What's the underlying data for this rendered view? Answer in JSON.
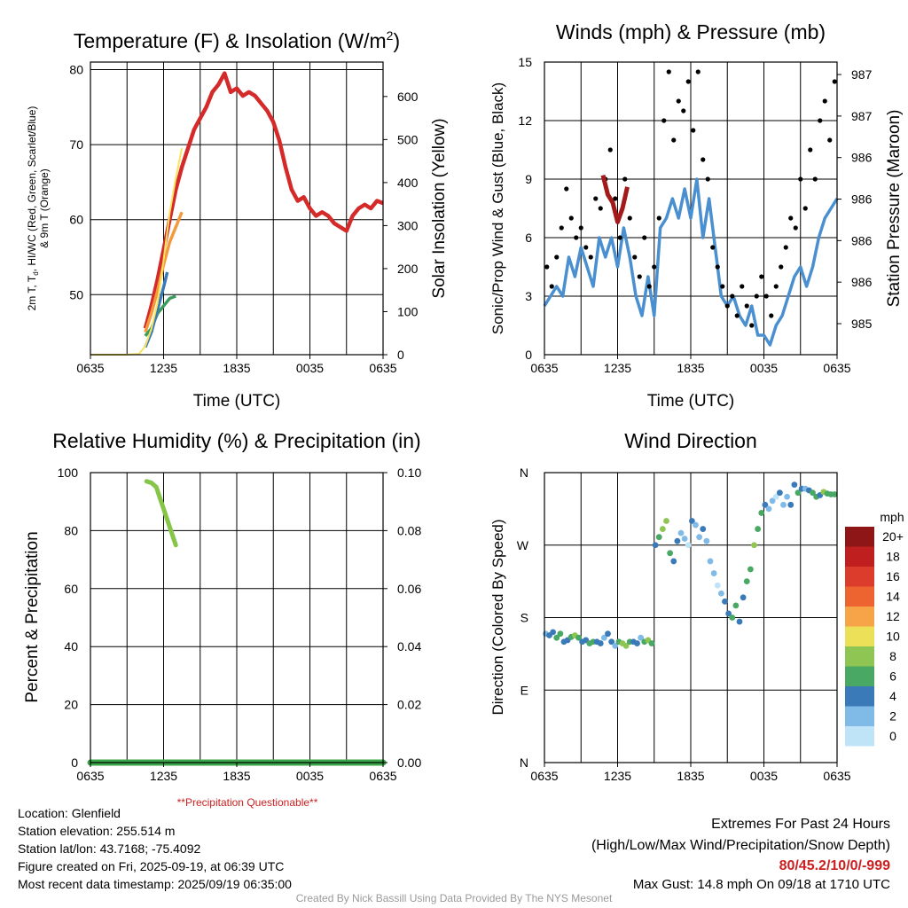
{
  "colors": {
    "temp": "#d42a2a",
    "insolation": "#f7e45c",
    "dewpoint": "#3c9c5c",
    "wind": "#4a90d0",
    "gust": "#000000",
    "pressure": "#a31a1a",
    "rh": "#85c547",
    "precip": "#3aa548",
    "warning": "#cc2020"
  },
  "chart_data": [
    {
      "type": "line",
      "title_main": "Temperature (F) & Insolation (W/m",
      "title_sup": "2",
      "title_end": ")",
      "xlabel": "Time (UTC)",
      "ylabel_left": [
        "2m T, T",
        "d",
        ", HI/WC (Red, Green, Scarlet/Blue)",
        "& 9m T (Orange)"
      ],
      "ylabel_right": "Solar Insolation (Yellow)",
      "xticks": [
        "0635",
        "1235",
        "1835",
        "0035",
        "0635"
      ],
      "yticks_left": [
        "50",
        "60",
        "70",
        "80"
      ],
      "yticks_right": [
        "0",
        "100",
        "200",
        "300",
        "400",
        "500",
        "600"
      ],
      "ylim_left": [
        42,
        81
      ],
      "ylim_right": [
        0,
        680
      ],
      "xlim_hours": [
        0,
        24
      ],
      "series": [
        {
          "name": "2m T",
          "color": "#d42a2a",
          "x": [
            4.5,
            5.0,
            5.5,
            6.0,
            6.5,
            7.0,
            7.5,
            8.0,
            8.5,
            9.0,
            9.5,
            10.0,
            10.5,
            11.0,
            11.5,
            12.0,
            12.5,
            13.0,
            13.5,
            14.0,
            14.5,
            15.0,
            15.5,
            16.0,
            16.5,
            17.0,
            17.5,
            18.0,
            18.5,
            19.0,
            19.5,
            20.0,
            20.5,
            21.0,
            21.5,
            22.0,
            22.5,
            23.0,
            23.5,
            24.0
          ],
          "values": [
            45.5,
            48.5,
            52,
            56,
            60,
            64,
            67,
            69.5,
            72,
            73.5,
            75,
            77,
            78,
            79.5,
            77,
            77.5,
            76.5,
            77,
            76.5,
            75.5,
            74.5,
            73,
            70.5,
            67,
            64,
            62.5,
            63,
            61.5,
            60.5,
            61,
            60.5,
            59.5,
            59,
            58.5,
            60.5,
            61.5,
            62,
            61.5,
            62.5,
            62.2
          ]
        },
        {
          "name": "T 9m",
          "color": "#f39a3c",
          "x": [
            4.5,
            5.0,
            5.5,
            6.0,
            6.5,
            7.5
          ],
          "values": [
            45,
            47.5,
            50.5,
            54,
            57,
            61
          ]
        },
        {
          "name": "Td",
          "color": "#3c9c5c",
          "x": [
            4.5,
            5.0,
            5.5,
            6.0,
            6.5,
            7.0
          ],
          "values": [
            44.5,
            45.5,
            47.5,
            48.5,
            49.5,
            49.8
          ]
        },
        {
          "name": "HI/WC",
          "color": "#3a7ab8",
          "x": [
            4.5,
            5.0,
            5.5,
            6.0,
            6.3
          ],
          "values": [
            43,
            45,
            48,
            51,
            53
          ]
        },
        {
          "name": "Insolation",
          "color": "#f7e45c",
          "axis": "right",
          "x": [
            0,
            1,
            2,
            3,
            4,
            4.5,
            5.0,
            5.5,
            6.0,
            6.5,
            7.0,
            7.5
          ],
          "values": [
            0,
            0,
            0,
            0,
            2,
            20,
            60,
            120,
            220,
            330,
            410,
            480
          ]
        }
      ]
    },
    {
      "type": "line",
      "title": "Winds (mph) & Pressure (mb)",
      "xlabel": "Time (UTC)",
      "ylabel_left": "Sonic/Prop Wind & Gust (Blue, Black)",
      "ylabel_right": "Station Pressure (Maroon)",
      "xticks": [
        "0635",
        "1235",
        "1835",
        "0035",
        "0635"
      ],
      "yticks_left": [
        "0",
        "3",
        "6",
        "9",
        "12",
        "15"
      ],
      "yticks_right": [
        "985",
        "986",
        "986",
        "986",
        "986",
        "987",
        "987"
      ],
      "ylim_left": [
        0,
        15
      ],
      "series": [
        {
          "name": "Wind",
          "color": "#4a90d0",
          "x": [
            0,
            0.5,
            1,
            1.5,
            2,
            2.5,
            3,
            3.5,
            4,
            4.5,
            5,
            5.5,
            6,
            6.5,
            7,
            7.5,
            8,
            8.5,
            9,
            9.5,
            10,
            10.5,
            11,
            11.5,
            12,
            12.5,
            13,
            13.5,
            14,
            14.5,
            15,
            15.5,
            16,
            16.5,
            17,
            17.5,
            18,
            18.5,
            19,
            19.5,
            20,
            20.5,
            21,
            21.5,
            22,
            22.5,
            23,
            23.5,
            24
          ],
          "values": [
            2.5,
            3,
            3.5,
            3,
            5,
            4,
            5.5,
            4.5,
            3.5,
            6,
            5,
            6,
            4.5,
            6.5,
            5,
            3,
            2,
            4,
            2,
            6.5,
            7,
            8,
            7,
            8.5,
            7,
            9,
            6,
            8,
            5.5,
            3,
            2.5,
            3,
            2,
            1.5,
            2.5,
            1,
            1,
            0.5,
            1.5,
            2,
            3,
            4,
            4.5,
            3.5,
            4.5,
            6,
            7,
            7.5,
            8
          ]
        },
        {
          "name": "Gust",
          "color": "#000000",
          "x": [
            0.2,
            0.6,
            1.0,
            1.4,
            1.8,
            2.2,
            2.6,
            3.0,
            3.4,
            3.8,
            4.2,
            4.6,
            5.0,
            5.4,
            5.8,
            6.2,
            6.6,
            7.0,
            7.4,
            7.8,
            8.2,
            8.6,
            9.0,
            9.4,
            9.8,
            10.2,
            10.6,
            11.0,
            11.4,
            11.8,
            12.2,
            12.6,
            13.0,
            13.4,
            13.8,
            14.2,
            14.6,
            15.0,
            15.4,
            15.8,
            16.2,
            16.6,
            17.0,
            17.4,
            17.8,
            18.2,
            18.6,
            19.0,
            19.4,
            19.8,
            20.2,
            20.6,
            21.0,
            21.4,
            21.8,
            22.2,
            22.6,
            23.0,
            23.4,
            23.8
          ],
          "values": [
            4.5,
            3.5,
            5,
            6.5,
            8.5,
            7,
            6,
            6.5,
            5.5,
            5,
            8,
            7.5,
            9,
            10.5,
            8,
            6,
            9,
            7,
            5,
            4,
            6,
            3.5,
            4.5,
            7,
            12,
            14.5,
            11,
            13,
            12.5,
            14,
            11.5,
            14.5,
            10,
            9,
            5.5,
            4.5,
            3.5,
            2.5,
            3,
            2,
            3.5,
            2.5,
            1.5,
            3,
            4,
            3,
            2,
            3.5,
            4.5,
            5.5,
            7,
            6.5,
            9,
            7.5,
            10.5,
            9,
            12,
            13,
            11,
            14
          ]
        },
        {
          "name": "Pressure",
          "color": "#a31a1a",
          "x": [
            4.8,
            5.2,
            5.6,
            6.0,
            6.4,
            6.8
          ],
          "values": [
            9.2,
            8.2,
            7.8,
            6.8,
            7.5,
            8.6
          ]
        }
      ]
    },
    {
      "type": "line",
      "title": "Relative Humidity (%) & Precipitation (in)",
      "ylabel_left": "Percent & Precipitation",
      "annotation": "**Precipitation Questionable**",
      "xticks": [
        "0635",
        "1235",
        "1835",
        "0035",
        "0635"
      ],
      "yticks_left": [
        "0",
        "20",
        "40",
        "60",
        "80",
        "100"
      ],
      "yticks_right": [
        "0.00",
        "0.02",
        "0.04",
        "0.06",
        "0.08",
        "0.10"
      ],
      "ylim_left": [
        0,
        100
      ],
      "ylim_right": [
        0,
        0.1
      ],
      "series": [
        {
          "name": "RH",
          "color": "#85c547",
          "x": [
            4.6,
            5.0,
            5.4,
            5.8,
            6.2,
            6.6,
            7.0
          ],
          "values": [
            97,
            96.5,
            95,
            90,
            85,
            80,
            75
          ]
        },
        {
          "name": "Precipitation",
          "color": "#3aa548",
          "axis": "right",
          "x": [
            0,
            24
          ],
          "values": [
            0,
            0
          ]
        }
      ]
    },
    {
      "type": "scatter",
      "title": "Wind Direction",
      "ylabel_left": "Direction (Colored By Speed)",
      "xticks": [
        "0635",
        "1235",
        "1835",
        "0035",
        "0635"
      ],
      "yticks_left": [
        "N",
        "E",
        "S",
        "W",
        "N"
      ],
      "ylim_left": [
        0,
        360
      ],
      "colorbar_title": "mph",
      "colorbar_labels": [
        "20+",
        "18",
        "16",
        "14",
        "12",
        "10",
        "8",
        "6",
        "4",
        "2",
        "0"
      ],
      "colorbar_colors": [
        "#8e1616",
        "#bf1f1f",
        "#dc3c2c",
        "#ee6430",
        "#f7a448",
        "#ebe058",
        "#8fc653",
        "#49a864",
        "#3a7ab8",
        "#80bae6",
        "#bfe3f7"
      ],
      "series": [
        {
          "name": "Direction",
          "x": [
            0.1,
            0.4,
            0.7,
            1.0,
            1.3,
            1.6,
            1.9,
            2.2,
            2.5,
            2.8,
            3.1,
            3.4,
            3.7,
            4.0,
            4.3,
            4.6,
            4.9,
            5.2,
            5.5,
            5.8,
            6.1,
            6.4,
            6.7,
            7.0,
            7.3,
            7.6,
            7.9,
            8.2,
            8.5,
            8.8,
            9.1,
            9.4,
            9.7,
            10.0,
            10.3,
            10.6,
            10.9,
            11.2,
            11.5,
            11.8,
            12.1,
            12.4,
            12.7,
            13.0,
            13.3,
            13.6,
            13.9,
            14.2,
            14.5,
            14.8,
            15.1,
            15.4,
            15.7,
            16.0,
            16.3,
            16.6,
            16.9,
            17.2,
            17.5,
            17.8,
            18.1,
            18.4,
            18.7,
            19.0,
            19.3,
            19.6,
            19.9,
            20.2,
            20.5,
            20.8,
            21.1,
            21.4,
            21.7,
            22.0,
            22.3,
            22.6,
            22.9,
            23.2,
            23.5,
            23.8
          ],
          "speed": [
            2,
            3,
            4,
            5,
            6,
            4,
            3,
            5,
            7,
            6,
            4,
            3,
            5,
            6,
            4,
            3,
            2,
            4,
            3,
            2,
            5,
            7,
            8,
            6,
            4,
            3,
            2,
            6,
            7,
            5,
            4,
            6,
            8,
            7,
            5,
            3,
            4,
            2,
            1,
            0,
            3,
            2,
            1,
            4,
            2,
            1,
            1,
            0,
            2,
            3,
            4,
            5,
            6,
            4,
            3,
            5,
            6,
            7,
            5,
            6,
            4,
            2,
            1,
            0,
            3,
            2,
            1,
            3,
            4,
            5,
            3,
            2,
            4,
            6,
            5,
            4,
            7,
            6,
            5,
            6
          ],
          "values": [
            160,
            158,
            162,
            155,
            160,
            150,
            152,
            156,
            158,
            155,
            150,
            152,
            148,
            150,
            150,
            148,
            155,
            160,
            150,
            145,
            150,
            148,
            145,
            150,
            150,
            148,
            155,
            150,
            152,
            148,
            270,
            280,
            290,
            300,
            260,
            250,
            275,
            285,
            278,
            270,
            300,
            295,
            280,
            290,
            275,
            250,
            235,
            220,
            210,
            200,
            185,
            180,
            195,
            175,
            205,
            225,
            240,
            270,
            290,
            310,
            320,
            315,
            325,
            330,
            335,
            320,
            330,
            320,
            345,
            335,
            340,
            340,
            338,
            335,
            330,
            332,
            336,
            334,
            333,
            333
          ]
        }
      ]
    }
  ],
  "info": {
    "location": "Location: Glenfield",
    "elevation": "Station elevation: 255.514 m",
    "latlon": "Station lat/lon: 43.7168; -75.4092",
    "created": "Figure created on Fri, 2025-09-19, at 06:39 UTC",
    "recent": "Most recent data timestamp: 2025/09/19 06:35:00"
  },
  "extremes": {
    "title": "Extremes For Past 24 Hours",
    "subtitle": "(High/Low/Max Wind/Precipitation/Snow Depth)",
    "values": "80/45.2/10/0/-999",
    "gust": "Max Gust: 14.8 mph On 09/18 at 1710 UTC"
  },
  "footer": "Created By Nick Bassill Using Data Provided By The NYS Mesonet"
}
